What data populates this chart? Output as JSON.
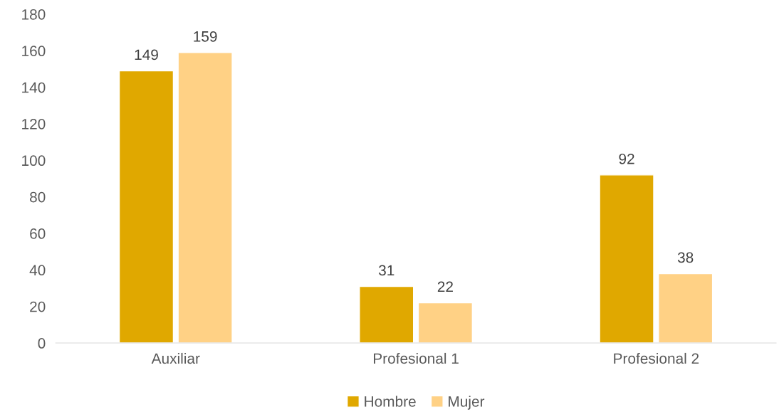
{
  "chart_data": {
    "type": "bar",
    "categories": [
      "Auxiliar",
      "Profesional 1",
      "Profesional 2"
    ],
    "series": [
      {
        "name": "Hombre",
        "color": "#e0a800",
        "values": [
          149,
          31,
          92
        ]
      },
      {
        "name": "Mujer",
        "color": "#ffd185",
        "values": [
          159,
          22,
          38
        ]
      }
    ],
    "ylim": [
      0,
      180
    ],
    "yticks": [
      0,
      20,
      40,
      60,
      80,
      100,
      120,
      140,
      160,
      180
    ],
    "data_labels": true,
    "legend": "bottom"
  }
}
